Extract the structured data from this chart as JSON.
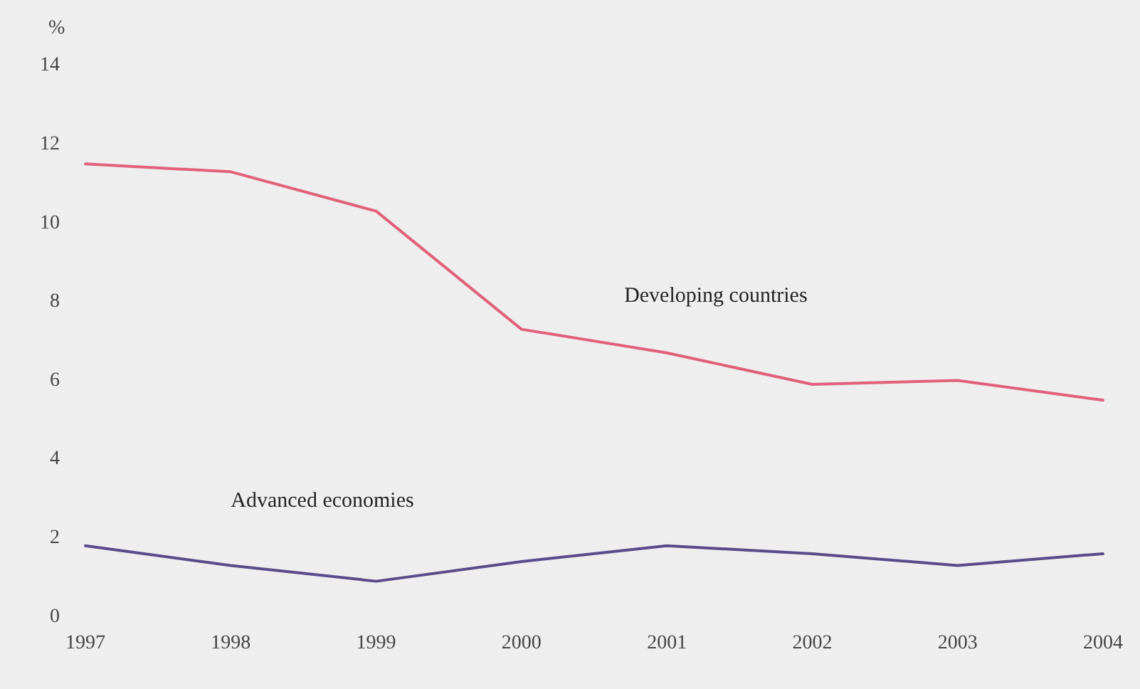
{
  "chart_data": {
    "type": "line",
    "ylabel": "%",
    "categories": [
      "1997",
      "1998",
      "1999",
      "2000",
      "2001",
      "2002",
      "2003",
      "2004"
    ],
    "series": [
      {
        "name": "Developing countries",
        "color": "#e0607a",
        "values": [
          11.5,
          11.3,
          10.3,
          7.3,
          6.7,
          5.9,
          6.0,
          5.5
        ]
      },
      {
        "name": "Advanced economies",
        "color": "#5a4a8a",
        "values": [
          1.8,
          1.3,
          0.9,
          1.4,
          1.8,
          1.6,
          1.3,
          1.6
        ]
      }
    ],
    "ylim": [
      0,
      14
    ],
    "yticks": [
      0,
      2,
      4,
      6,
      8,
      10,
      12,
      14
    ],
    "grid": false,
    "legend": false,
    "marker": "none",
    "line_style": "solid"
  }
}
